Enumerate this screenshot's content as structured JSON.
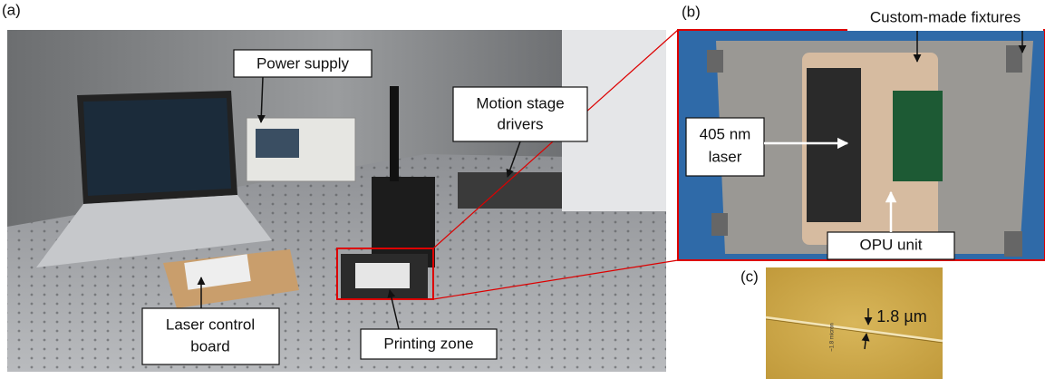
{
  "panel_a": {
    "label": "(a)",
    "callouts": [
      {
        "lines": [
          "Power supply"
        ]
      },
      {
        "lines": [
          "Motion stage",
          "drivers"
        ]
      },
      {
        "lines": [
          "Laser control",
          "board"
        ]
      },
      {
        "lines": [
          "Printing zone"
        ]
      }
    ]
  },
  "panel_b": {
    "label": "(b)",
    "callouts": [
      {
        "lines": [
          "Custom-made fixtures"
        ]
      },
      {
        "lines": [
          "405 nm",
          "laser"
        ]
      },
      {
        "lines": [
          "OPU unit"
        ]
      }
    ]
  },
  "panel_c": {
    "label": "(c)",
    "measurement": "1.8 µm",
    "scale_note": "~1.8 micron"
  }
}
